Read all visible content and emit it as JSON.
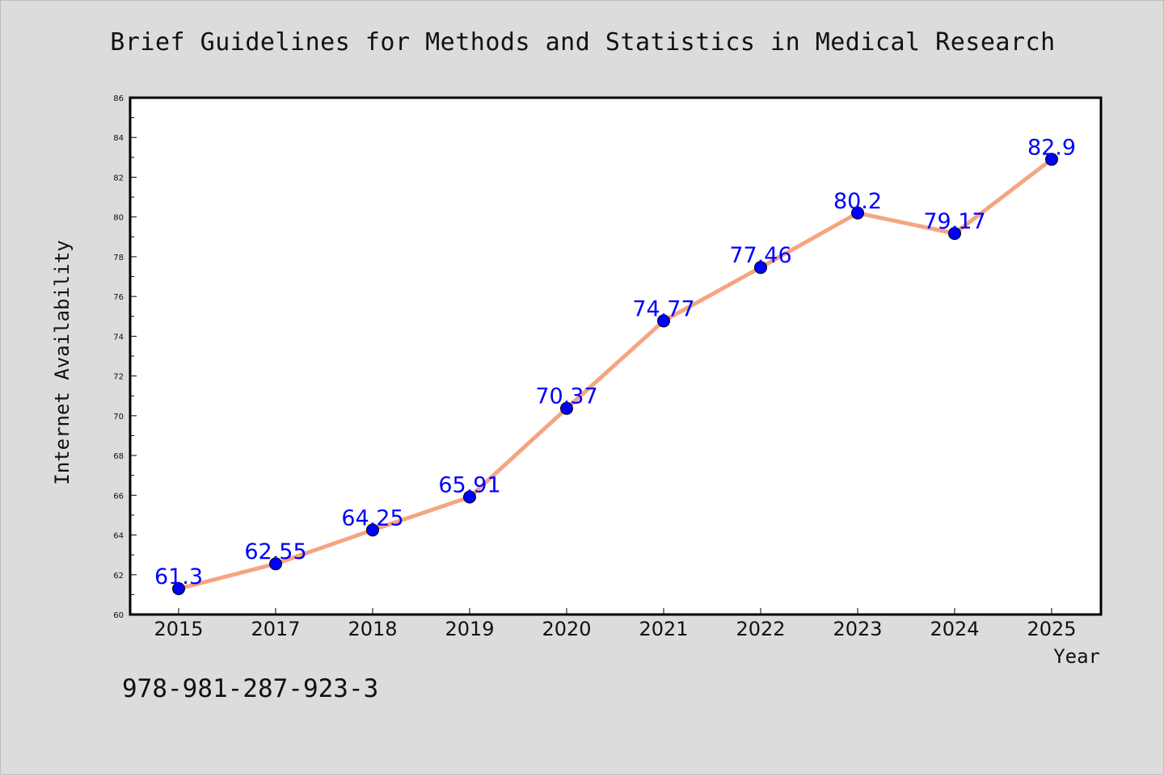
{
  "chart_data": {
    "type": "line",
    "title": "Brief Guidelines for Methods and Statistics in Medical Research",
    "xlabel": "Year",
    "ylabel": "Internet Availability",
    "categories": [
      "2015",
      "2017",
      "2018",
      "2019",
      "2020",
      "2021",
      "2022",
      "2023",
      "2024",
      "2025"
    ],
    "series": [
      {
        "values": [
          61.3,
          62.55,
          64.25,
          65.91,
          70.37,
          74.77,
          77.46,
          80.2,
          79.17,
          82.9
        ]
      }
    ],
    "data_labels": [
      "61.3",
      "62.55",
      "64.25",
      "65.91",
      "70.37",
      "74.77",
      "77.46",
      "80.2",
      "79.17",
      "82.9"
    ],
    "ylim": [
      60,
      86
    ],
    "yticks": [
      "60",
      "62",
      "64",
      "66",
      "68",
      "70",
      "72",
      "74",
      "76",
      "78",
      "80",
      "82",
      "84",
      "86"
    ],
    "grid": false,
    "legend": "none",
    "colors": {
      "line": "#f4a582",
      "marker": "#0000ff",
      "label": "#0000ff",
      "background": "#dcdcdc",
      "plot": "#ffffff"
    }
  },
  "footer": {
    "isbn": "978-981-287-923-3"
  }
}
